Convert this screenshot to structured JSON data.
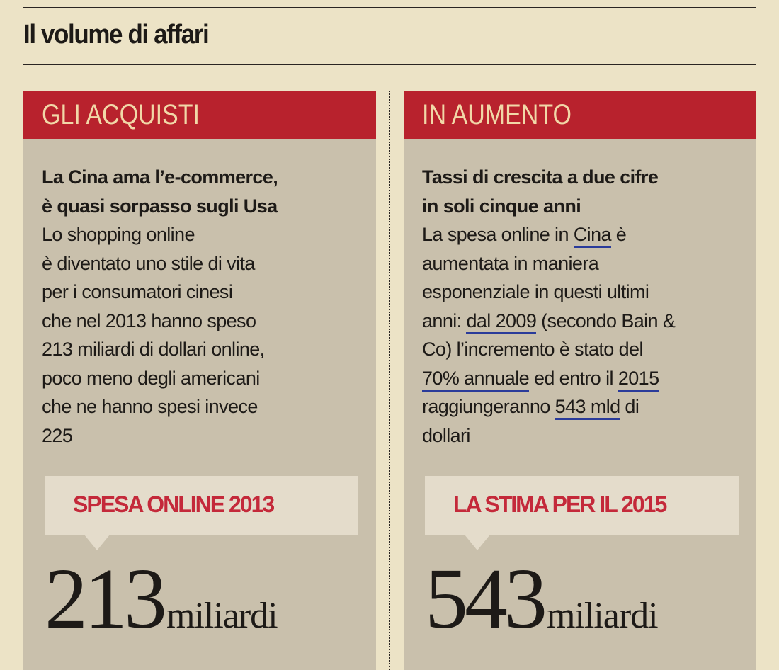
{
  "title": "Il volume di affari",
  "left": {
    "header": "GLI ACQUISTI",
    "headline": [
      "La Cina ama l’e-commerce,",
      "è quasi sorpasso sugli Usa"
    ],
    "text": [
      "Lo shopping online",
      "è diventato uno stile di vita",
      "per i consumatori cinesi",
      "che nel 2013 hanno speso",
      "213 miliardi di dollari online,",
      "poco meno degli americani",
      "che ne hanno spesi invece",
      "225"
    ],
    "callout": "SPESA ONLINE 2013",
    "figure": "213",
    "unit": "miliardi"
  },
  "right": {
    "header": "IN AUMENTO",
    "headline": [
      "Tassi di crescita a due cifre",
      "in soli cinque anni"
    ],
    "text": [
      [
        {
          "t": "La spesa online in "
        },
        {
          "t": "Cina",
          "u": true
        },
        {
          "t": " è"
        }
      ],
      [
        {
          "t": "aumentata in maniera"
        }
      ],
      [
        {
          "t": "esponenziale in questi ultimi"
        }
      ],
      [
        {
          "t": "anni: "
        },
        {
          "t": "dal 2009",
          "u": true
        },
        {
          "t": " (secondo Bain &"
        }
      ],
      [
        {
          "t": "Co) l’incremento è stato del"
        }
      ],
      [
        {
          "t": "70% annuale",
          "u": true
        },
        {
          "t": " ed entro il "
        },
        {
          "t": "2015",
          "u": true
        }
      ],
      [
        {
          "t": "raggiungeranno "
        },
        {
          "t": "543 mld",
          "u": true
        },
        {
          "t": " di"
        }
      ],
      [
        {
          "t": "dollari"
        }
      ]
    ],
    "callout": "LA STIMA PER IL 2015",
    "figure": "543",
    "unit": "miliardi"
  },
  "colors": {
    "header_red": "#b8222d",
    "callout_red": "#c4293a",
    "underline_blue": "#2a3b9a"
  }
}
